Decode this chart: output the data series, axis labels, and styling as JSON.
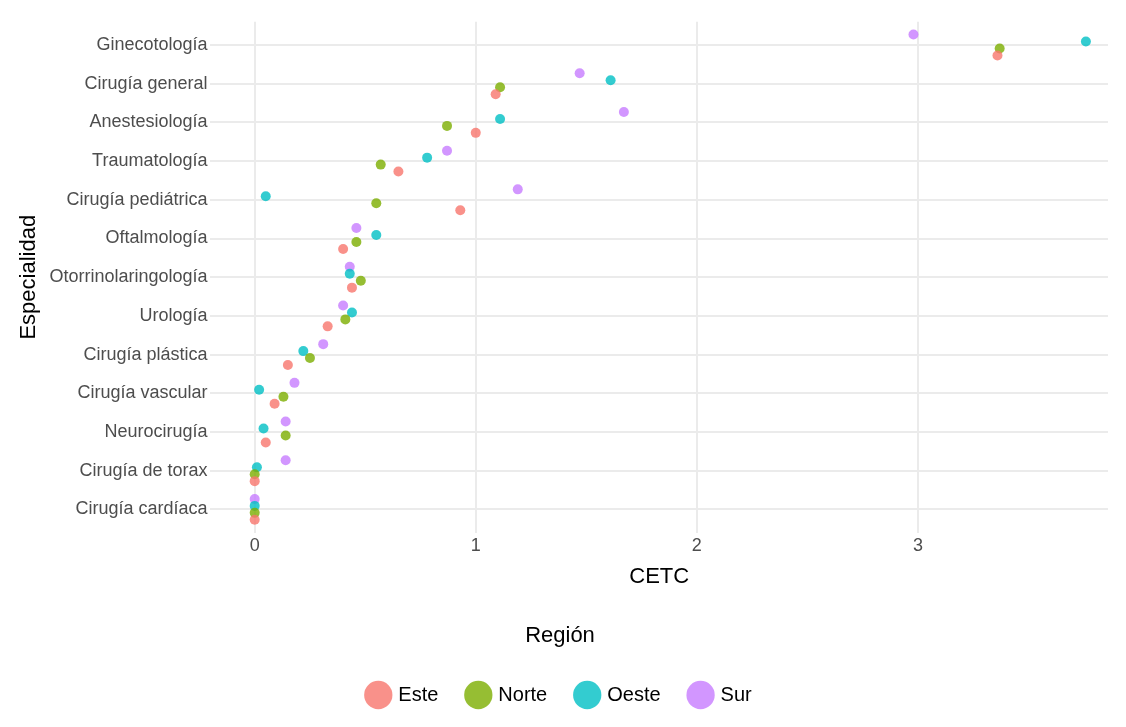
{
  "chart_data": {
    "type": "scatter",
    "orientation": "horizontal",
    "xlabel": "CETC",
    "ylabel": "Especialidad",
    "legend_title": "Región",
    "legend": "bottom",
    "grid": true,
    "marker": "circle",
    "categories": [
      "Ginecotología",
      "Cirugía general",
      "Anestesiología",
      "Traumatología",
      "Cirugía pediátrica",
      "Oftalmología",
      "Otorrinolaringología",
      "Urología",
      "Cirugía plástica",
      "Cirugía vascular",
      "Neurocirugía",
      "Cirugía de torax",
      "Cirugía cardíaca"
    ],
    "xlim": [
      -0.2,
      3.86
    ],
    "xticks": [
      0,
      1,
      2,
      3
    ],
    "series": [
      {
        "name": "Este",
        "color": "#f8766d",
        "values": [
          3.36,
          1.09,
          1.0,
          0.65,
          0.93,
          0.4,
          0.44,
          0.33,
          0.15,
          0.09,
          0.05,
          0,
          0
        ]
      },
      {
        "name": "Norte",
        "color": "#7cae00",
        "values": [
          3.37,
          1.11,
          0.87,
          0.57,
          0.55,
          0.46,
          0.48,
          0.41,
          0.25,
          0.13,
          0.14,
          0,
          0
        ]
      },
      {
        "name": "Oeste",
        "color": "#00bfc4",
        "values": [
          3.76,
          1.61,
          1.11,
          0.78,
          0.05,
          0.55,
          0.43,
          0.44,
          0.22,
          0.02,
          0.04,
          0.01,
          0
        ]
      },
      {
        "name": "Sur",
        "color": "#c77cff",
        "values": [
          2.98,
          1.47,
          1.67,
          0.87,
          1.19,
          0.46,
          0.43,
          0.4,
          0.31,
          0.18,
          0.14,
          0.14,
          0
        ]
      }
    ]
  }
}
